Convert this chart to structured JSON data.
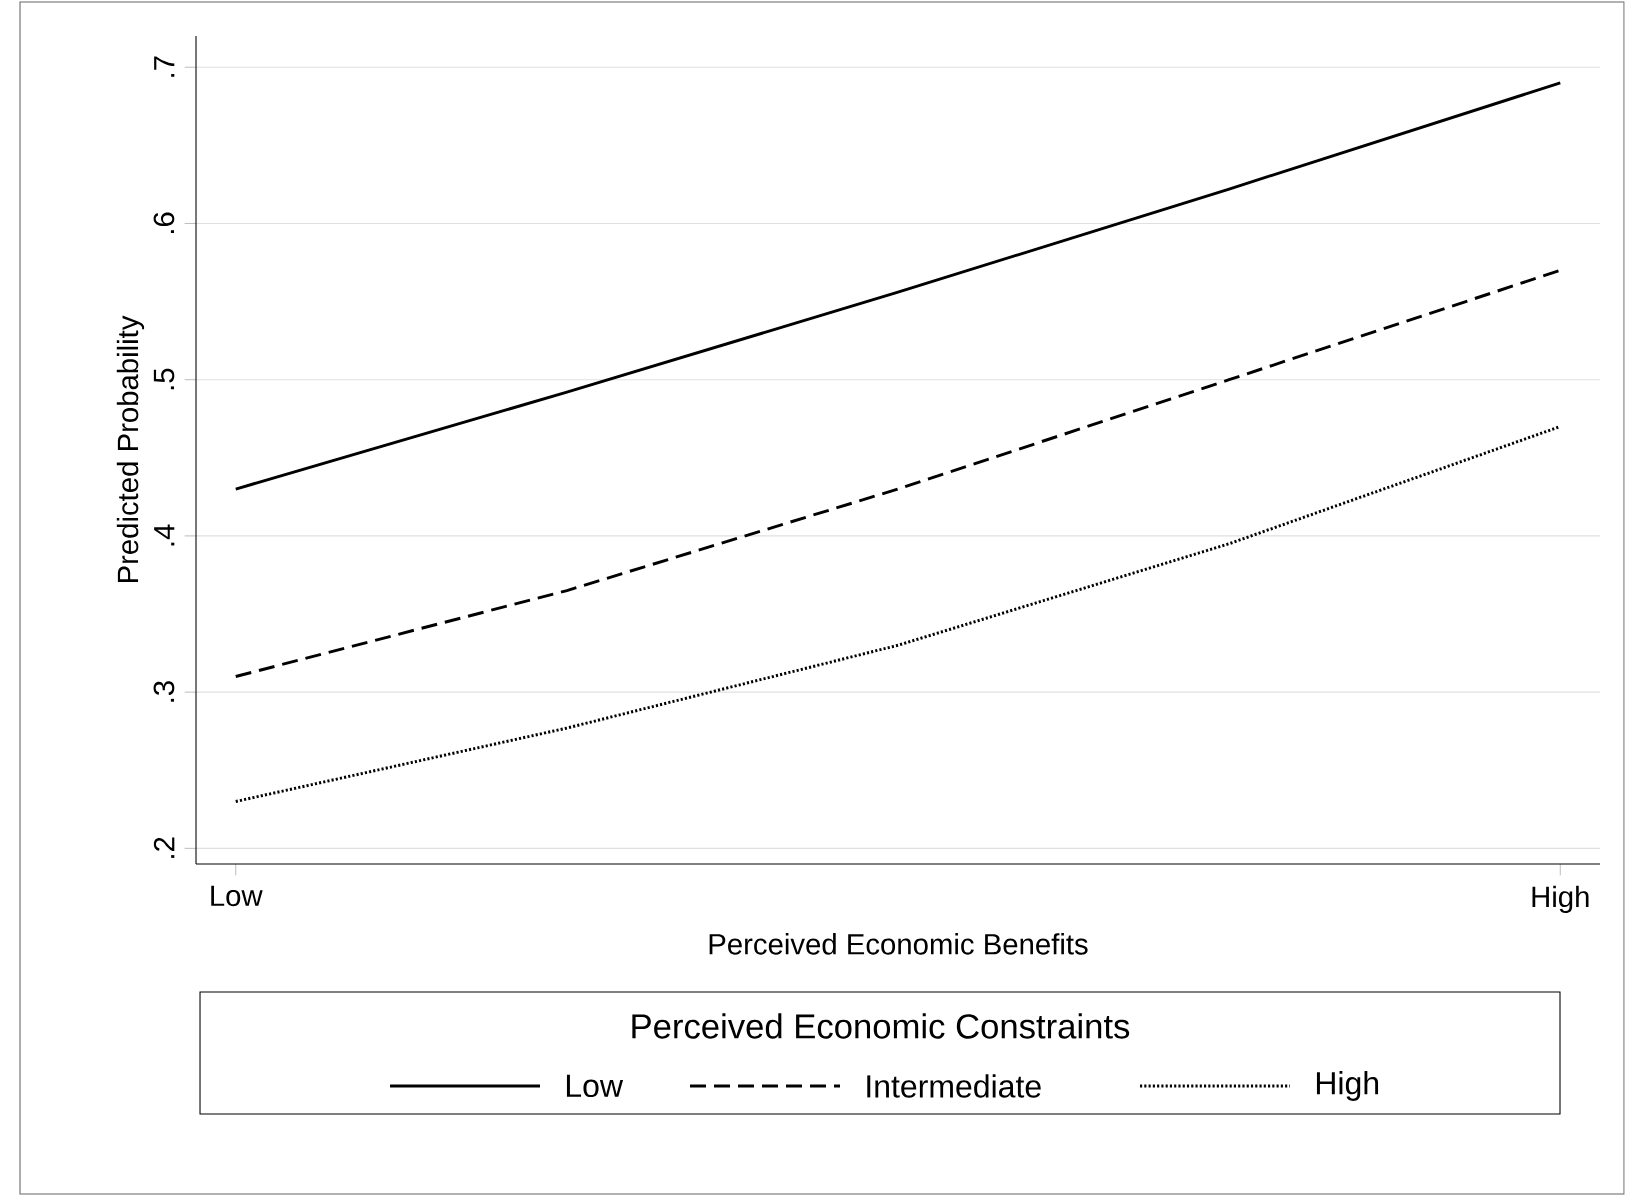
{
  "chart_data": {
    "type": "line",
    "xlabel": "Perceived Economic Benefits",
    "ylabel": "Predicted Probability",
    "legend_title": "Perceived Economic Constraints",
    "legend": "bottom",
    "grid": "y",
    "marker": "none",
    "categories": [
      "Low",
      null,
      null,
      null,
      "High"
    ],
    "ylim": [
      0.19,
      0.72
    ],
    "yticks": [
      {
        "value": 0.2,
        "label": ".2"
      },
      {
        "value": 0.3,
        "label": ".3"
      },
      {
        "value": 0.4,
        "label": ".4"
      },
      {
        "value": 0.5,
        "label": ".5"
      },
      {
        "value": 0.6,
        "label": ".6"
      },
      {
        "value": 0.7,
        "label": ".7"
      }
    ],
    "series": [
      {
        "name": "Low",
        "color": "#000000",
        "line_style": "solid",
        "values": [
          0.43,
          0.492,
          0.556,
          0.622,
          0.69
        ]
      },
      {
        "name": "Intermediate",
        "color": "#000000",
        "line_style": "dashed",
        "values": [
          0.31,
          0.365,
          0.43,
          0.5,
          0.57
        ]
      },
      {
        "name": "High",
        "color": "#000000",
        "line_style": "dotted",
        "values": [
          0.23,
          0.277,
          0.33,
          0.395,
          0.47
        ]
      }
    ]
  }
}
